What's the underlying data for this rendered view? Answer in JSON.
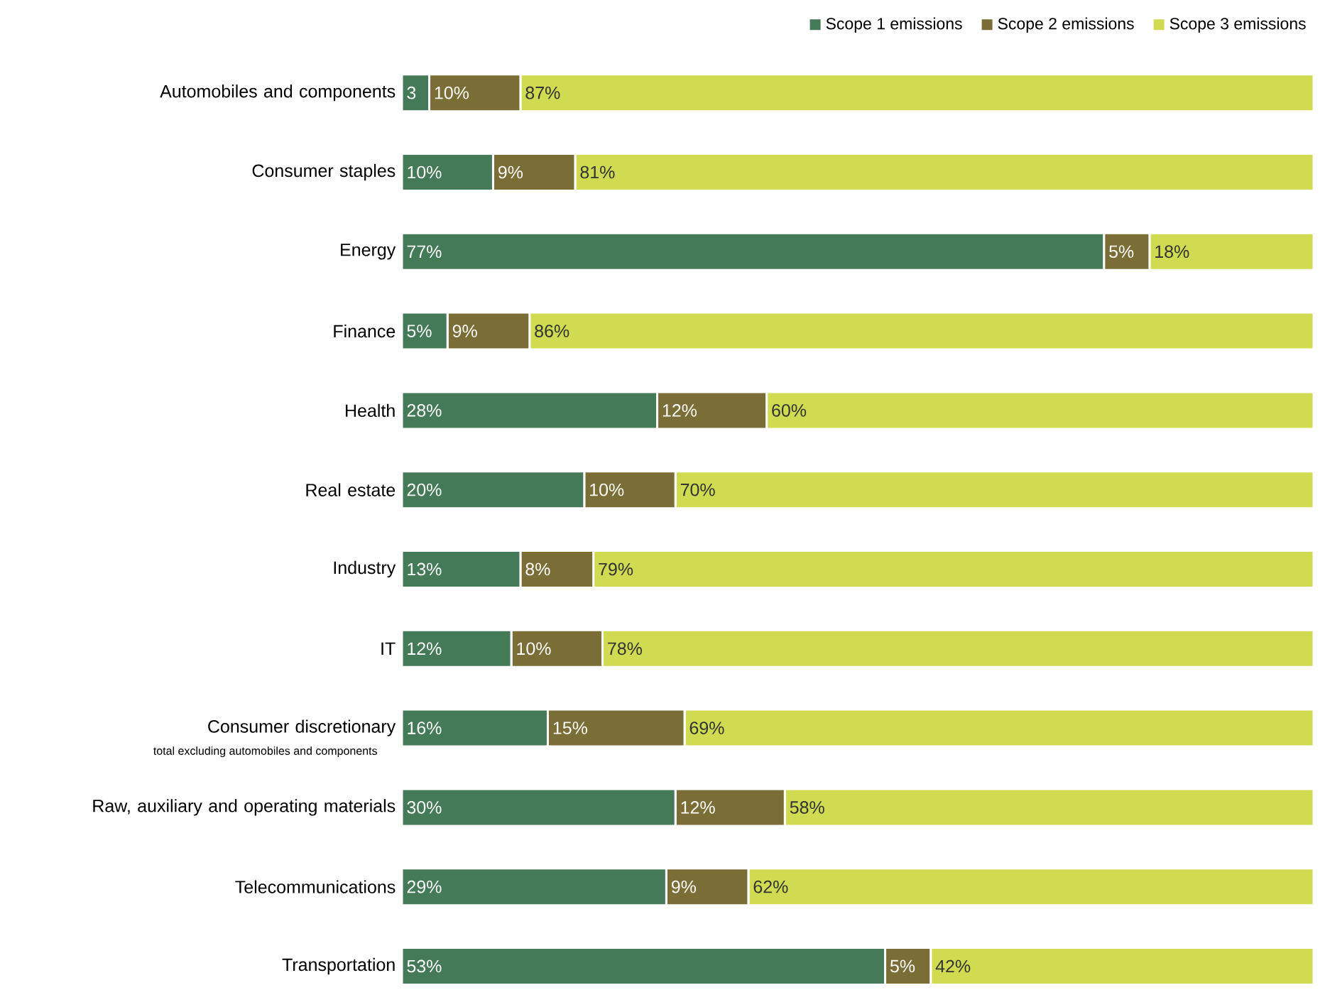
{
  "chart_data": {
    "type": "bar",
    "orientation": "horizontal",
    "stacked": true,
    "legend": "top right",
    "categories": [
      "Automobiles and components",
      "Consumer staples",
      "Energy",
      "Finance",
      "Health",
      "Real estate",
      "Industry",
      "IT",
      "Consumer discretionary",
      "Raw, auxiliary and operating materials",
      "Telecommunications",
      "Transportation"
    ],
    "annotations": [
      "total excluding automobiles and components"
    ],
    "series": [
      {
        "name": "Scope 1 emissions",
        "color": "#457a59",
        "values": [
          3,
          10,
          77,
          5,
          28,
          20,
          13,
          12,
          16,
          30,
          29,
          53
        ],
        "value_labels": [
          "3",
          "10%",
          "77%",
          "5%",
          "28%",
          "20%",
          "13%",
          "12%",
          "16%",
          "30%",
          "29%",
          "53%"
        ]
      },
      {
        "name": "Scope 2 emissions",
        "color": "#7a6d35",
        "values": [
          10,
          9,
          5,
          9,
          12,
          10,
          8,
          10,
          15,
          12,
          9,
          5
        ],
        "value_labels": [
          "10%",
          "9%",
          "5%",
          "9%",
          "12%",
          "10%",
          "8%",
          "10%",
          "15%",
          "12%",
          "9%",
          "5%"
        ]
      },
      {
        "name": "Scope 3 emissions",
        "color": "#d0db52",
        "values": [
          87,
          81,
          18,
          86,
          60,
          70,
          79,
          78,
          69,
          58,
          62,
          42
        ],
        "value_labels": [
          "87%",
          "81%",
          "18%",
          "86%",
          "60%",
          "70%",
          "79%",
          "78%",
          "69%",
          "58%",
          "62%",
          "42%"
        ]
      }
    ]
  }
}
